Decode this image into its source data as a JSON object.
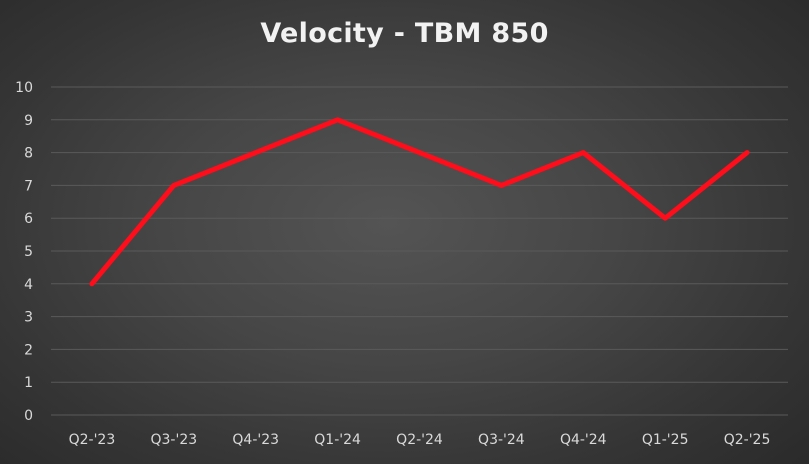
{
  "chart_data": {
    "type": "line",
    "title": "Velocity - TBM 850",
    "xlabel": "",
    "ylabel": "",
    "categories": [
      "Q2-'23",
      "Q3-'23",
      "Q4-'23",
      "Q1-'24",
      "Q2-'24",
      "Q3-'24",
      "Q4-'24",
      "Q1-'25",
      "Q2-'25"
    ],
    "series": [
      {
        "name": "Velocity",
        "values": [
          4,
          7,
          8,
          9,
          8,
          7,
          8,
          6,
          8
        ],
        "color": "#ff0d1a"
      }
    ],
    "ylim": [
      0,
      10
    ],
    "yticks": [
      0,
      1,
      2,
      3,
      4,
      5,
      6,
      7,
      8,
      9,
      10
    ],
    "grid": true,
    "legend": "none"
  },
  "colors": {
    "line": "#ff0d1a",
    "grid": "#5a5a5a",
    "text": "#d9d9d9",
    "title": "#f2f2f2"
  }
}
